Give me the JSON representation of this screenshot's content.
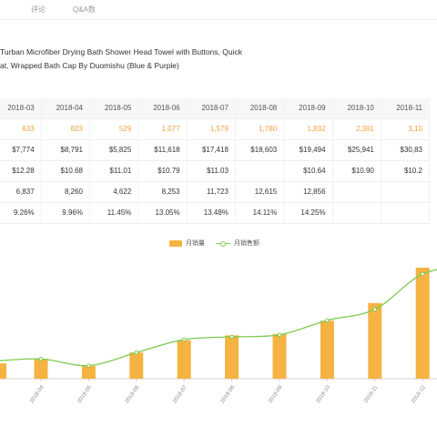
{
  "tabs": [
    {
      "label": "评论"
    },
    {
      "label": "Q&A数"
    }
  ],
  "product": {
    "title_line1": "Turban Microfiber Drying Bath Shower Head Towel with Buttons, Quick",
    "title_line2": "at, Wrapped Bath Cap By Duomishu (Blue & Purple)"
  },
  "table": {
    "months": [
      "2018-03",
      "2018-04",
      "2018-05",
      "2018-06",
      "2018-07",
      "2018-08",
      "2018-09",
      "2018-10",
      "2018-11"
    ],
    "units": [
      "633",
      "823",
      "529",
      "1,077",
      "1,579",
      "1,780",
      "1,832",
      "2,381",
      "3,10"
    ],
    "revenue": [
      "$7,774",
      "$8,791",
      "$5,825",
      "$11,618",
      "$17,418",
      "$18,603",
      "$19,494",
      "$25,941",
      "$30,83"
    ],
    "price": [
      "$12.28",
      "$10.68",
      "$11.01",
      "$10.79",
      "$11.03",
      "",
      "$10.64",
      "$10.90",
      "$10.2"
    ],
    "rank": [
      "6,837",
      "8,260",
      "4,622",
      "8,253",
      "11,723",
      "12,615",
      "12,856",
      "",
      ""
    ],
    "ratio": [
      "9.26%",
      "9.96%",
      "11.45%",
      "13.05%",
      "13.48%",
      "14.11%",
      "14.25%",
      "",
      ""
    ]
  },
  "legend": {
    "bar_label": "月销量",
    "line_label": "月销售额"
  },
  "colors": {
    "bar": "#f5b342",
    "line": "#7dcb52",
    "units_text": "#f0a23a"
  },
  "chart_data": {
    "type": "bar",
    "categories": [
      "2018-04",
      "2018-05",
      "2018-06",
      "2018-07",
      "2018-08",
      "2018-09",
      "2018-10",
      "2018-11",
      "2018-12"
    ],
    "series": [
      {
        "name": "月销量",
        "type": "bar",
        "values": [
          823,
          529,
          1077,
          1579,
          1780,
          1832,
          2381,
          3108,
          4560
        ]
      },
      {
        "name": "月销售额",
        "type": "line",
        "values": [
          8791,
          5825,
          11618,
          17418,
          18603,
          19494,
          25941,
          30835,
          46500
        ]
      }
    ],
    "legend_position": "top-center",
    "grid": false
  }
}
